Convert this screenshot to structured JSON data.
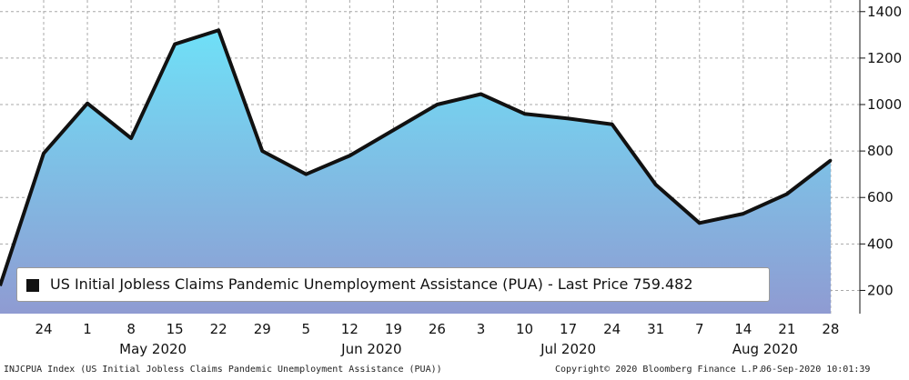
{
  "chart_data": {
    "type": "area",
    "title": "",
    "ylim": [
      100,
      1450
    ],
    "yticks": [
      200,
      400,
      600,
      800,
      1000,
      1200,
      1400
    ],
    "categories": [
      "24",
      "1",
      "8",
      "15",
      "22",
      "29",
      "5",
      "12",
      "19",
      "26",
      "3",
      "10",
      "17",
      "24",
      "31",
      "7",
      "14",
      "21",
      "28"
    ],
    "month_labels": [
      "May 2020",
      "Jun 2020",
      "Jul 2020",
      "Aug 2020"
    ],
    "grid": true,
    "series": [
      {
        "name": "US Initial Jobless Claims Pandemic Unemployment Assistance (PUA)",
        "values": [
          790,
          1005,
          855,
          1260,
          1320,
          800,
          700,
          780,
          890,
          1000,
          1045,
          960,
          940,
          915,
          655,
          490,
          530,
          615,
          759.482
        ],
        "start_value": 220
      }
    ],
    "colors": {
      "fill_top": "#6fe0f7",
      "fill_bottom": "#8f9bd2",
      "line": "#111111",
      "grid": "#a8a8a8"
    }
  },
  "legend": {
    "label": "US Initial Jobless Claims Pandemic Unemployment Assistance (PUA) - Last Price 759.482"
  },
  "footer": {
    "left": "INJCPUA Index (US Initial Jobless Claims Pandemic Unemployment Assistance (PUA))",
    "copyright": "Copyright© 2020 Bloomberg Finance L.P.",
    "timestamp": "06-Sep-2020 10:01:39"
  }
}
